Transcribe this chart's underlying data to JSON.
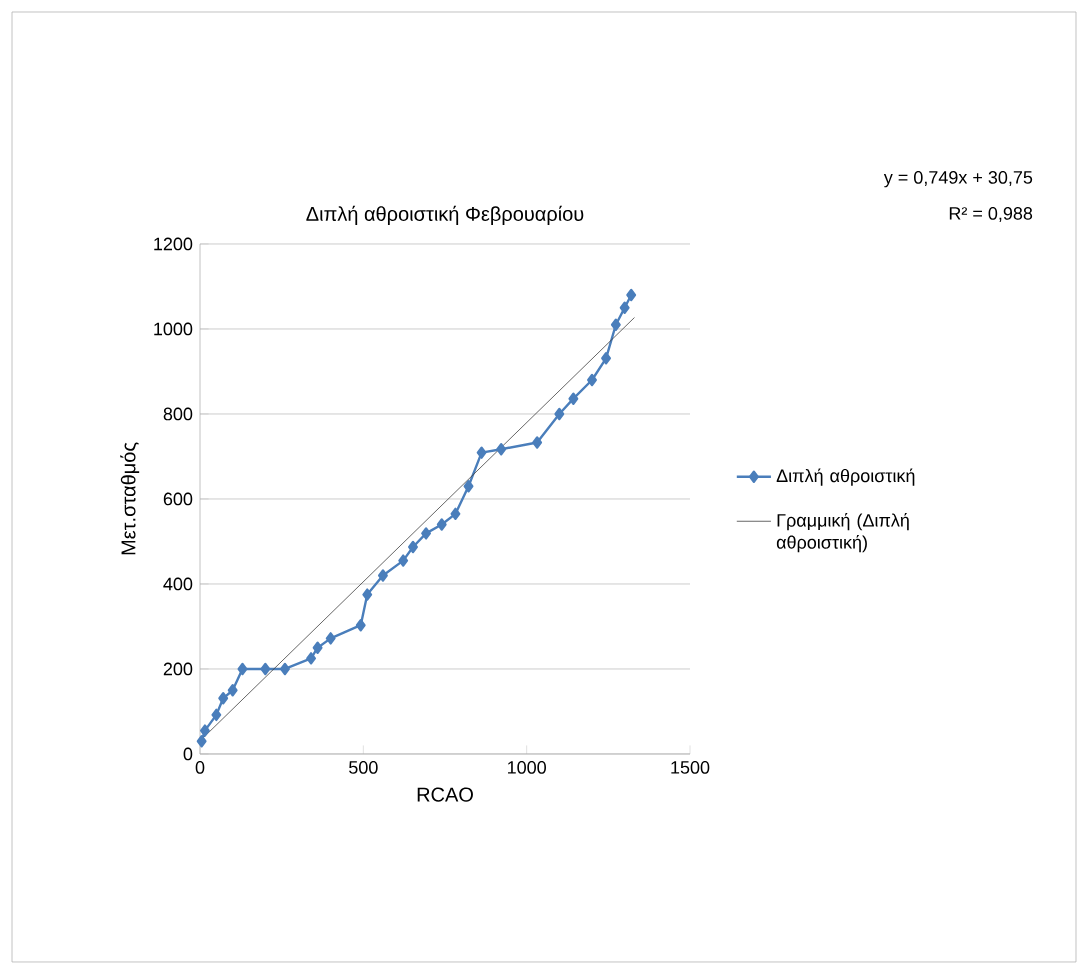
{
  "chart_data": {
    "type": "line",
    "title": "Διπλή αθροιστική Φεβρουαρίου",
    "xlabel": "RCAO",
    "ylabel": "Μετ.σταθμός",
    "xlim": [
      0,
      1500
    ],
    "xticks": [
      0,
      500,
      1000,
      1500
    ],
    "ylim": [
      0,
      1200
    ],
    "yticks": [
      0,
      200,
      400,
      600,
      800,
      1000,
      1200
    ],
    "grid": "y",
    "legend": "right",
    "annotations": [
      "y = 0,749x + 30,75",
      "R² = 0,988"
    ],
    "series": [
      {
        "name": "Διπλή αθροιστική",
        "color": "#4a7ebb",
        "marker": "diamond",
        "x": [
          5,
          15,
          50,
          71,
          100,
          130,
          200,
          260,
          340,
          360,
          400,
          492,
          512,
          560,
          622,
          652,
          692,
          740,
          782,
          822,
          862,
          922,
          1032,
          1100,
          1143,
          1200,
          1243,
          1273,
          1300,
          1320
        ],
        "values": [
          30,
          55,
          92,
          131,
          150,
          200,
          200,
          200,
          225,
          250,
          272,
          303,
          375,
          420,
          455,
          487,
          519,
          540,
          565,
          630,
          709,
          717,
          733,
          800,
          836,
          880,
          931,
          1010,
          1050,
          1080
        ]
      },
      {
        "name": "Γραμμική (Διπλή αθροιστική)",
        "color": "#404040",
        "type": "line",
        "marker": "none",
        "x": [
          0,
          1330
        ],
        "values": [
          30.75,
          1026.92
        ]
      }
    ]
  }
}
